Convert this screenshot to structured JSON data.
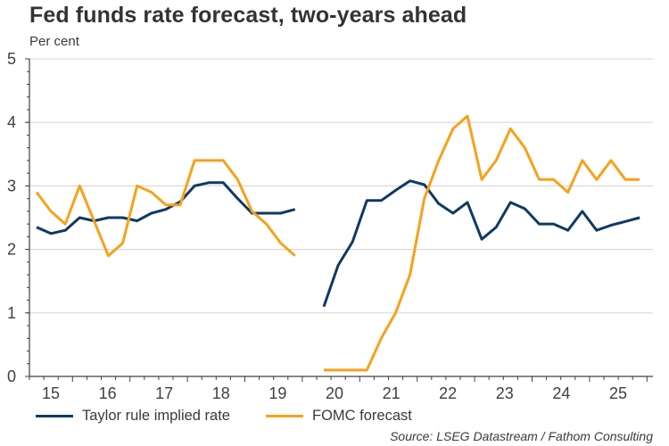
{
  "chart_data": {
    "type": "line",
    "title": "Fed funds rate forecast, two-years ahead",
    "subtitle": "Per cent",
    "xlabel": "",
    "ylabel": "Per cent",
    "ylim": [
      0,
      5
    ],
    "yticks": [
      "0",
      "1",
      "2",
      "3",
      "4",
      "5"
    ],
    "xtick_labels": [
      "15",
      "16",
      "17",
      "18",
      "19",
      "20",
      "21",
      "22",
      "23",
      "24",
      "25"
    ],
    "x": [
      "2015Q1",
      "2015Q2",
      "2015Q3",
      "2015Q4",
      "2016Q1",
      "2016Q2",
      "2016Q3",
      "2016Q4",
      "2017Q1",
      "2017Q2",
      "2017Q3",
      "2017Q4",
      "2018Q1",
      "2018Q2",
      "2018Q3",
      "2018Q4",
      "2019Q1",
      "2019Q2",
      "2019Q3",
      "2019Q4",
      "2020Q1",
      "2020Q2",
      "2020Q3",
      "2020Q4",
      "2021Q1",
      "2021Q2",
      "2021Q3",
      "2021Q4",
      "2022Q1",
      "2022Q2",
      "2022Q3",
      "2022Q4",
      "2023Q1",
      "2023Q2",
      "2023Q3",
      "2023Q4",
      "2024Q1",
      "2024Q2",
      "2024Q3",
      "2024Q4",
      "2025Q1",
      "2025Q2",
      "2025Q3"
    ],
    "grid": true,
    "legend_position": "bottom",
    "series": [
      {
        "name": "Taylor rule implied rate",
        "color": "#0e3a63",
        "values": [
          2.35,
          2.25,
          2.3,
          2.5,
          2.45,
          2.5,
          2.5,
          2.45,
          2.57,
          2.63,
          2.75,
          3.0,
          3.05,
          3.05,
          2.8,
          2.57,
          2.57,
          2.57,
          2.63,
          null,
          1.1,
          1.75,
          2.12,
          2.77,
          2.77,
          2.93,
          3.08,
          3.02,
          2.72,
          2.57,
          2.74,
          2.16,
          2.35,
          2.74,
          2.64,
          2.4,
          2.4,
          2.3,
          2.6,
          2.3,
          2.38,
          2.44,
          2.5
        ]
      },
      {
        "name": "FOMC forecast",
        "color": "#f7a11a",
        "values": [
          2.9,
          2.6,
          2.4,
          3.0,
          2.45,
          1.9,
          2.1,
          3.0,
          2.9,
          2.7,
          2.7,
          3.4,
          3.4,
          3.4,
          3.1,
          2.6,
          2.4,
          2.1,
          1.9,
          null,
          0.1,
          0.1,
          0.1,
          0.1,
          0.6,
          1.0,
          1.6,
          2.8,
          3.4,
          3.9,
          4.1,
          3.1,
          3.4,
          3.9,
          3.6,
          3.1,
          3.1,
          2.9,
          3.4,
          3.1,
          3.4,
          3.1,
          3.1
        ]
      }
    ],
    "source": "Source: LSEG Datastream / Fathom Consulting"
  }
}
